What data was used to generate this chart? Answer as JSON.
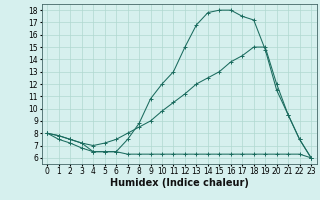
{
  "xlabel": "Humidex (Indice chaleur)",
  "xlim": [
    -0.5,
    23.5
  ],
  "ylim": [
    5.5,
    18.5
  ],
  "xticks": [
    0,
    1,
    2,
    3,
    4,
    5,
    6,
    7,
    8,
    9,
    10,
    11,
    12,
    13,
    14,
    15,
    16,
    17,
    18,
    19,
    20,
    21,
    22,
    23
  ],
  "yticks": [
    6,
    7,
    8,
    9,
    10,
    11,
    12,
    13,
    14,
    15,
    16,
    17,
    18
  ],
  "bg_color": "#d6f0ee",
  "line_color": "#1a6b5e",
  "grid_color": "#b0d8d0",
  "line1_x": [
    0,
    1,
    2,
    3,
    4,
    5,
    6,
    7,
    8,
    9,
    10,
    11,
    12,
    13,
    14,
    15,
    16,
    17,
    18,
    19,
    20,
    21,
    22,
    23
  ],
  "line1_y": [
    8.0,
    7.8,
    7.5,
    7.2,
    6.5,
    6.5,
    6.5,
    7.5,
    8.8,
    10.8,
    12.0,
    13.0,
    15.0,
    16.8,
    17.8,
    18.0,
    18.0,
    17.5,
    17.2,
    14.8,
    11.5,
    9.5,
    7.5,
    6.0
  ],
  "line2_x": [
    0,
    1,
    2,
    3,
    4,
    5,
    6,
    7,
    8,
    9,
    10,
    11,
    12,
    13,
    14,
    15,
    16,
    17,
    18,
    19,
    20,
    21,
    22,
    23
  ],
  "line2_y": [
    8.0,
    7.8,
    7.5,
    7.2,
    7.0,
    7.2,
    7.5,
    8.0,
    8.5,
    9.0,
    9.8,
    10.5,
    11.2,
    12.0,
    12.5,
    13.0,
    13.8,
    14.3,
    15.0,
    15.0,
    12.0,
    9.5,
    7.5,
    6.0
  ],
  "line3_x": [
    0,
    1,
    2,
    3,
    4,
    5,
    6,
    7,
    8,
    9,
    10,
    11,
    12,
    13,
    14,
    15,
    16,
    17,
    18,
    19,
    20,
    21,
    22,
    23
  ],
  "line3_y": [
    8.0,
    7.5,
    7.2,
    6.8,
    6.5,
    6.5,
    6.5,
    6.3,
    6.3,
    6.3,
    6.3,
    6.3,
    6.3,
    6.3,
    6.3,
    6.3,
    6.3,
    6.3,
    6.3,
    6.3,
    6.3,
    6.3,
    6.3,
    6.0
  ],
  "tick_fontsize": 5.5,
  "label_fontsize": 7.0
}
